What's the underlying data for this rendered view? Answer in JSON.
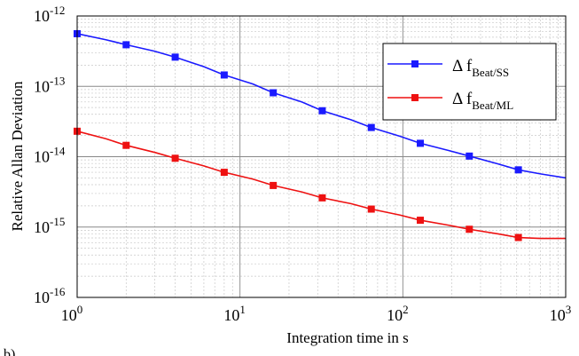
{
  "chart_data": {
    "type": "line",
    "title": "",
    "xlabel": "Integration time in s",
    "ylabel": "Relative Allan Deviation",
    "xscale": "log",
    "yscale": "log",
    "xlim": [
      1,
      1000
    ],
    "ylim": [
      1e-16,
      1e-12
    ],
    "grid": true,
    "minor_grid": true,
    "legend_position": "top-right",
    "panel_label": "b)",
    "x_ticks": [
      {
        "base": "10",
        "exp": "0"
      },
      {
        "base": "10",
        "exp": "1"
      },
      {
        "base": "10",
        "exp": "2"
      },
      {
        "base": "10",
        "exp": "3"
      }
    ],
    "y_ticks": [
      {
        "base": "10",
        "exp": "-16"
      },
      {
        "base": "10",
        "exp": "-15"
      },
      {
        "base": "10",
        "exp": "-14"
      },
      {
        "base": "10",
        "exp": "-13"
      },
      {
        "base": "10",
        "exp": "-12"
      }
    ],
    "series": [
      {
        "name": "Δ f_Beat/SS",
        "legend_main": "Δ f",
        "legend_sub": "Beat/SS",
        "color": "#1a1aff",
        "marker": "square",
        "x": [
          1,
          2,
          4,
          8,
          16,
          32,
          64,
          128,
          256,
          512
        ],
        "y": [
          5.6e-13,
          3.9e-13,
          2.6e-13,
          1.45e-13,
          8.1e-14,
          4.5e-14,
          2.6e-14,
          1.55e-14,
          1.02e-14,
          6.5e-15
        ],
        "curve_x": [
          1,
          1.5,
          2,
          3,
          4,
          6,
          8,
          12,
          16,
          24,
          32,
          48,
          64,
          96,
          128,
          192,
          256,
          384,
          512,
          700,
          1000
        ],
        "curve_y": [
          5.6e-13,
          4.6e-13,
          3.9e-13,
          3.15e-13,
          2.6e-13,
          1.9e-13,
          1.45e-13,
          1.08e-13,
          8.1e-14,
          6e-14,
          4.5e-14,
          3.35e-14,
          2.6e-14,
          1.95e-14,
          1.55e-14,
          1.22e-14,
          1.02e-14,
          7.9e-15,
          6.5e-15,
          5.7e-15,
          5e-15
        ]
      },
      {
        "name": "Δ f_Beat/ML",
        "legend_main": "Δ f",
        "legend_sub": "Beat/ML",
        "color": "#ee1111",
        "marker": "square",
        "x": [
          1,
          2,
          4,
          8,
          16,
          32,
          64,
          128,
          256,
          512
        ],
        "y": [
          2.3e-14,
          1.45e-14,
          9.5e-15,
          6e-15,
          3.9e-15,
          2.6e-15,
          1.8e-15,
          1.25e-15,
          9.3e-16,
          7.1e-16
        ],
        "curve_x": [
          1,
          1.5,
          2,
          3,
          4,
          6,
          8,
          12,
          16,
          24,
          32,
          48,
          64,
          96,
          128,
          192,
          256,
          384,
          512,
          700,
          1000
        ],
        "curve_y": [
          2.3e-14,
          1.8e-14,
          1.45e-14,
          1.15e-14,
          9.5e-15,
          7.4e-15,
          6e-15,
          4.8e-15,
          3.9e-15,
          3.15e-15,
          2.6e-15,
          2.15e-15,
          1.8e-15,
          1.48e-15,
          1.25e-15,
          1.06e-15,
          9.3e-16,
          8e-16,
          7.1e-16,
          6.9e-16,
          6.9e-16
        ]
      }
    ]
  }
}
